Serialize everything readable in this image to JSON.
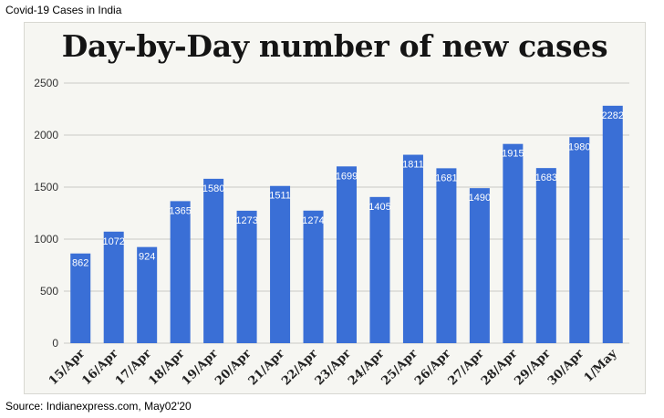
{
  "header": "Covid-19 Cases in India",
  "source": "Source: Indianexpress.com, May02'20",
  "colors": {
    "bar": "#3a6fd6",
    "grid": "#c9c9c5",
    "label_on_bar": "#ffffff"
  },
  "chart_data": {
    "type": "bar",
    "title": "Day-by-Day number of new cases",
    "xlabel": "",
    "ylabel": "",
    "categories": [
      "15/Apr",
      "16/Apr",
      "17/Apr",
      "18/Apr",
      "19/Apr",
      "20/Apr",
      "21/Apr",
      "22/Apr",
      "23/Apr",
      "24/Apr",
      "25/Apr",
      "26/Apr",
      "27/Apr",
      "28/Apr",
      "29/Apr",
      "30/Apr",
      "1/May"
    ],
    "values": [
      862,
      1072,
      924,
      1365,
      1580,
      1273,
      1511,
      1274,
      1699,
      1405,
      1811,
      1681,
      1490,
      1915,
      1683,
      1980,
      2282
    ],
    "data_labels": [
      "862",
      "1072",
      "924",
      "1365",
      "1580",
      "1273",
      "1511",
      "1274",
      "1699",
      "1405",
      "1811",
      "1681",
      "1490",
      "1915",
      "1683",
      "1980",
      "2282"
    ],
    "ylim": [
      0,
      2500
    ],
    "yticks": [
      0,
      500,
      1000,
      1500,
      2000,
      2500
    ],
    "ytick_labels": [
      "0",
      "500",
      "1000",
      "1500",
      "2000",
      "2500"
    ],
    "grid": true,
    "legend": "none"
  }
}
